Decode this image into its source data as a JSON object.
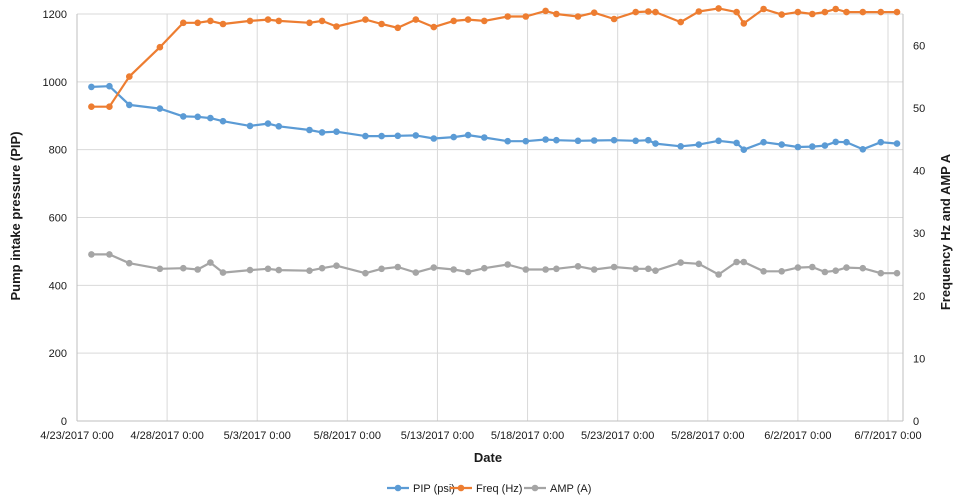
{
  "chart_data": {
    "type": "line",
    "xlabel": "Date",
    "ylabel": "Pump intake pressure (PIP)",
    "y2label": "Frequency Hz and AMP A",
    "xlim": [
      0,
      45
    ],
    "ylim": [
      0,
      1200
    ],
    "y2lim": [
      0,
      65
    ],
    "x_ticks": [
      {
        "value": 0,
        "label": "4/23/2017 0:00"
      },
      {
        "value": 5,
        "label": "4/28/2017 0:00"
      },
      {
        "value": 10,
        "label": "5/3/2017 0:00"
      },
      {
        "value": 15,
        "label": "5/8/2017 0:00"
      },
      {
        "value": 20,
        "label": "5/13/2017 0:00"
      },
      {
        "value": 25,
        "label": "5/18/2017 0:00"
      },
      {
        "value": 30,
        "label": "5/23/2017 0:00"
      },
      {
        "value": 35,
        "label": "5/28/2017 0:00"
      },
      {
        "value": 40,
        "label": "6/2/2017 0:00"
      },
      {
        "value": 45,
        "label": "6/7/2017 0:00"
      }
    ],
    "y_ticks": [
      0,
      200,
      400,
      600,
      800,
      1000,
      1200
    ],
    "y2_ticks": [
      0,
      10,
      20,
      30,
      40,
      50,
      60
    ],
    "grid": true,
    "legend_position": "bottom",
    "series": [
      {
        "name": "PIP (psi)",
        "axis": "left",
        "color": "#5b9bd5",
        "points": [
          [
            0.8,
            985
          ],
          [
            1.8,
            987
          ],
          [
            2.9,
            932
          ],
          [
            4.6,
            921
          ],
          [
            5.9,
            898
          ],
          [
            6.7,
            897
          ],
          [
            7.4,
            893
          ],
          [
            8.1,
            884
          ],
          [
            9.6,
            870
          ],
          [
            10.6,
            877
          ],
          [
            11.2,
            869
          ],
          [
            12.9,
            858
          ],
          [
            13.6,
            851
          ],
          [
            14.4,
            853
          ],
          [
            16.0,
            840
          ],
          [
            16.9,
            840
          ],
          [
            17.8,
            841
          ],
          [
            18.8,
            842
          ],
          [
            19.8,
            833
          ],
          [
            20.9,
            837
          ],
          [
            21.7,
            843
          ],
          [
            22.6,
            836
          ],
          [
            23.9,
            825
          ],
          [
            24.9,
            825
          ],
          [
            26.0,
            830
          ],
          [
            26.6,
            828
          ],
          [
            27.8,
            826
          ],
          [
            28.7,
            827
          ],
          [
            29.8,
            828
          ],
          [
            31.0,
            826
          ],
          [
            31.7,
            828
          ],
          [
            32.1,
            818
          ],
          [
            33.5,
            810
          ],
          [
            34.5,
            815
          ],
          [
            35.6,
            826
          ],
          [
            36.6,
            820
          ],
          [
            37.0,
            800
          ],
          [
            38.1,
            822
          ],
          [
            39.1,
            815
          ],
          [
            40.0,
            808
          ],
          [
            40.8,
            809
          ],
          [
            41.5,
            812
          ],
          [
            42.1,
            823
          ],
          [
            42.7,
            822
          ],
          [
            43.6,
            801
          ],
          [
            44.6,
            822
          ],
          [
            45.5,
            818
          ]
        ]
      },
      {
        "name": "Freq (Hz)",
        "axis": "right",
        "color": "#ed7d31",
        "points": [
          [
            0.8,
            50.2
          ],
          [
            1.8,
            50.2
          ],
          [
            2.9,
            55.0
          ],
          [
            4.6,
            59.7
          ],
          [
            5.9,
            63.6
          ],
          [
            6.7,
            63.6
          ],
          [
            7.4,
            63.9
          ],
          [
            8.1,
            63.4
          ],
          [
            9.6,
            63.9
          ],
          [
            10.6,
            64.1
          ],
          [
            11.2,
            63.9
          ],
          [
            12.9,
            63.6
          ],
          [
            13.6,
            63.9
          ],
          [
            14.4,
            63.0
          ],
          [
            16.0,
            64.1
          ],
          [
            16.9,
            63.4
          ],
          [
            17.8,
            62.8
          ],
          [
            18.8,
            64.1
          ],
          [
            19.8,
            62.9
          ],
          [
            20.9,
            63.9
          ],
          [
            21.7,
            64.1
          ],
          [
            22.6,
            63.9
          ],
          [
            23.9,
            64.6
          ],
          [
            24.9,
            64.6
          ],
          [
            26.0,
            65.5
          ],
          [
            26.6,
            65.0
          ],
          [
            27.8,
            64.6
          ],
          [
            28.7,
            65.2
          ],
          [
            29.8,
            64.2
          ],
          [
            31.0,
            65.3
          ],
          [
            31.7,
            65.4
          ],
          [
            32.1,
            65.3
          ],
          [
            33.5,
            63.7
          ],
          [
            34.5,
            65.4
          ],
          [
            35.6,
            65.9
          ],
          [
            36.6,
            65.3
          ],
          [
            37.0,
            63.5
          ],
          [
            38.1,
            65.8
          ],
          [
            39.1,
            64.9
          ],
          [
            40.0,
            65.3
          ],
          [
            40.8,
            65.0
          ],
          [
            41.5,
            65.3
          ],
          [
            42.1,
            65.8
          ],
          [
            42.7,
            65.3
          ],
          [
            43.6,
            65.3
          ],
          [
            44.6,
            65.3
          ],
          [
            45.5,
            65.3
          ]
        ]
      },
      {
        "name": "AMP (A)",
        "axis": "right",
        "color": "#a5a5a5",
        "points": [
          [
            0.8,
            26.6
          ],
          [
            1.8,
            26.6
          ],
          [
            2.9,
            25.2
          ],
          [
            4.6,
            24.3
          ],
          [
            5.9,
            24.4
          ],
          [
            6.7,
            24.2
          ],
          [
            7.4,
            25.3
          ],
          [
            8.1,
            23.7
          ],
          [
            9.6,
            24.1
          ],
          [
            10.6,
            24.3
          ],
          [
            11.2,
            24.1
          ],
          [
            12.9,
            24.0
          ],
          [
            13.6,
            24.4
          ],
          [
            14.4,
            24.8
          ],
          [
            16.0,
            23.6
          ],
          [
            16.9,
            24.3
          ],
          [
            17.8,
            24.6
          ],
          [
            18.8,
            23.7
          ],
          [
            19.8,
            24.5
          ],
          [
            20.9,
            24.2
          ],
          [
            21.7,
            23.8
          ],
          [
            22.6,
            24.4
          ],
          [
            23.9,
            25.0
          ],
          [
            24.9,
            24.2
          ],
          [
            26.0,
            24.2
          ],
          [
            26.6,
            24.3
          ],
          [
            27.8,
            24.7
          ],
          [
            28.7,
            24.2
          ],
          [
            29.8,
            24.6
          ],
          [
            31.0,
            24.3
          ],
          [
            31.7,
            24.3
          ],
          [
            32.1,
            24.0
          ],
          [
            33.5,
            25.3
          ],
          [
            34.5,
            25.1
          ],
          [
            35.6,
            23.4
          ],
          [
            36.6,
            25.4
          ],
          [
            37.0,
            25.4
          ],
          [
            38.1,
            23.9
          ],
          [
            39.1,
            23.9
          ],
          [
            40.0,
            24.5
          ],
          [
            40.8,
            24.6
          ],
          [
            41.5,
            23.8
          ],
          [
            42.1,
            24.0
          ],
          [
            42.7,
            24.5
          ],
          [
            43.6,
            24.4
          ],
          [
            44.6,
            23.6
          ],
          [
            45.5,
            23.6
          ]
        ]
      }
    ]
  }
}
